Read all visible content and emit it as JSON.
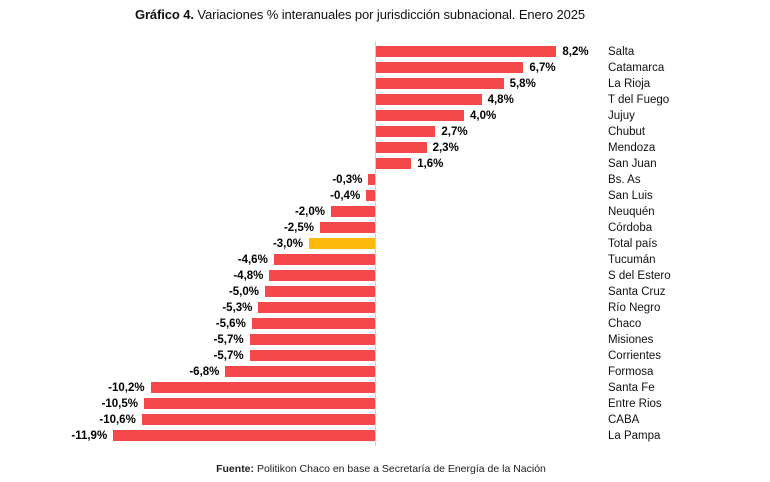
{
  "title": {
    "prefix": "Gráfico 4.",
    "text": "Variaciones % interanuales por jurisdicción subnacional. Enero 2025"
  },
  "source": {
    "prefix": "Fuente:",
    "text": "Politikon Chaco en base a Secretaría de Energía de la Nación"
  },
  "colors": {
    "bar": "#F4484A",
    "highlight": "#FCBA0D",
    "axis": "#CFCFCF",
    "text": "#000000"
  },
  "chart_data": {
    "type": "bar",
    "orientation": "horizontal",
    "title": "Gráfico 4. Variaciones % interanuales por jurisdicción subnacional. Enero 2025",
    "xlabel": "",
    "ylabel": "",
    "xlim": [
      -12,
      9
    ],
    "grid": false,
    "legend": false,
    "highlight_category": "Total país",
    "categories": [
      "Salta",
      "Catamarca",
      "La Rioja",
      "T del Fuego",
      "Jujuy",
      "Chubut",
      "Mendoza",
      "San Juan",
      "Bs. As",
      "San Luis",
      "Neuquén",
      "Córdoba",
      "Total país",
      "Tucumán",
      "S del Estero",
      "Santa Cruz",
      "Río Negro",
      "Chaco",
      "Misiones",
      "Corrientes",
      "Formosa",
      "Santa Fe",
      "Entre Rios",
      "CABA",
      "La Pampa"
    ],
    "values": [
      8.2,
      6.7,
      5.8,
      4.8,
      4.0,
      2.7,
      2.3,
      1.6,
      -0.3,
      -0.4,
      -2.0,
      -2.5,
      -3.0,
      -4.6,
      -4.8,
      -5.0,
      -5.3,
      -5.6,
      -5.7,
      -5.7,
      -6.8,
      -10.2,
      -10.5,
      -10.6,
      -11.9
    ],
    "value_labels": [
      "8,2%",
      "6,7%",
      "5,8%",
      "4,8%",
      "4,0%",
      "2,7%",
      "2,3%",
      "1,6%",
      "-0,3%",
      "-0,4%",
      "-2,0%",
      "-2,5%",
      "-3,0%",
      "-4,6%",
      "-4,8%",
      "-5,0%",
      "-5,3%",
      "-5,6%",
      "-5,7%",
      "-5,7%",
      "-6,8%",
      "-10,2%",
      "-10,5%",
      "-10,6%",
      "-11,9%"
    ]
  }
}
